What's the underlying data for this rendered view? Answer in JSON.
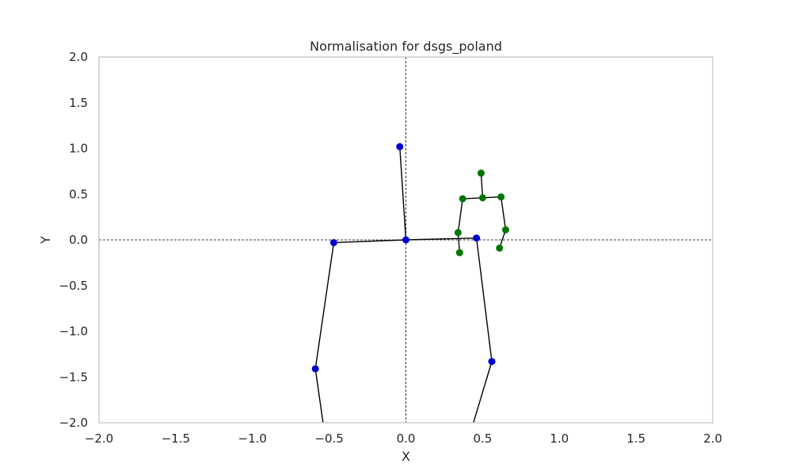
{
  "chart_data": {
    "type": "scatter",
    "title": "Normalisation for dsgs_poland",
    "xlabel": "X",
    "ylabel": "Y",
    "xlim": [
      -2.0,
      2.0
    ],
    "ylim": [
      -2.0,
      2.0
    ],
    "grid": false,
    "x_ticks": [
      "−2.0",
      "−1.5",
      "−1.0",
      "−0.5",
      "0.0",
      "0.5",
      "1.0",
      "1.5",
      "2.0"
    ],
    "y_ticks": [
      "2.0",
      "1.5",
      "1.0",
      "0.5",
      "0.0",
      "−0.5",
      "−1.0",
      "−1.5",
      "−2.0"
    ],
    "x_tick_values": [
      -2.0,
      -1.5,
      -1.0,
      -0.5,
      0.0,
      0.5,
      1.0,
      1.5,
      2.0
    ],
    "y_tick_values": [
      2.0,
      1.5,
      1.0,
      0.5,
      0.0,
      -0.5,
      -1.0,
      -1.5,
      -2.0
    ],
    "reference_lines": {
      "x": 0.0,
      "y": 0.0,
      "style": "dashed",
      "color": "#000000"
    },
    "series": [
      {
        "color": "#0000cc",
        "points": [
          {
            "x": -0.04,
            "y": 1.02
          },
          {
            "x": 0.0,
            "y": 0.0
          },
          {
            "x": -0.47,
            "y": -0.03
          },
          {
            "x": 0.46,
            "y": 0.02
          },
          {
            "x": -0.59,
            "y": -1.41
          },
          {
            "x": 0.56,
            "y": -1.33
          }
        ]
      },
      {
        "color": "#007700",
        "points": [
          {
            "x": 0.49,
            "y": 0.73
          },
          {
            "x": 0.5,
            "y": 0.46
          },
          {
            "x": 0.37,
            "y": 0.45
          },
          {
            "x": 0.62,
            "y": 0.47
          },
          {
            "x": 0.34,
            "y": 0.08
          },
          {
            "x": 0.35,
            "y": -0.14
          },
          {
            "x": 0.65,
            "y": 0.11
          },
          {
            "x": 0.61,
            "y": -0.09
          }
        ]
      }
    ],
    "segments": [
      {
        "from": [
          -0.04,
          1.02
        ],
        "to": [
          0.0,
          0.0
        ]
      },
      {
        "from": [
          0.0,
          0.0
        ],
        "to": [
          -0.47,
          -0.03
        ]
      },
      {
        "from": [
          0.0,
          0.0
        ],
        "to": [
          0.46,
          0.02
        ]
      },
      {
        "from": [
          -0.47,
          -0.03
        ],
        "to": [
          -0.59,
          -1.41
        ]
      },
      {
        "from": [
          -0.59,
          -1.41
        ],
        "to": [
          -0.54,
          -2.0
        ]
      },
      {
        "from": [
          0.46,
          0.02
        ],
        "to": [
          0.56,
          -1.33
        ]
      },
      {
        "from": [
          0.56,
          -1.33
        ],
        "to": [
          0.44,
          -2.0
        ]
      },
      {
        "from": [
          0.49,
          0.73
        ],
        "to": [
          0.5,
          0.46
        ]
      },
      {
        "from": [
          0.37,
          0.45
        ],
        "to": [
          0.62,
          0.47
        ]
      },
      {
        "from": [
          0.37,
          0.45
        ],
        "to": [
          0.34,
          0.08
        ]
      },
      {
        "from": [
          0.34,
          0.08
        ],
        "to": [
          0.35,
          -0.14
        ]
      },
      {
        "from": [
          0.62,
          0.47
        ],
        "to": [
          0.65,
          0.11
        ]
      },
      {
        "from": [
          0.65,
          0.11
        ],
        "to": [
          0.61,
          -0.09
        ]
      }
    ],
    "segment_color": "#000000"
  }
}
